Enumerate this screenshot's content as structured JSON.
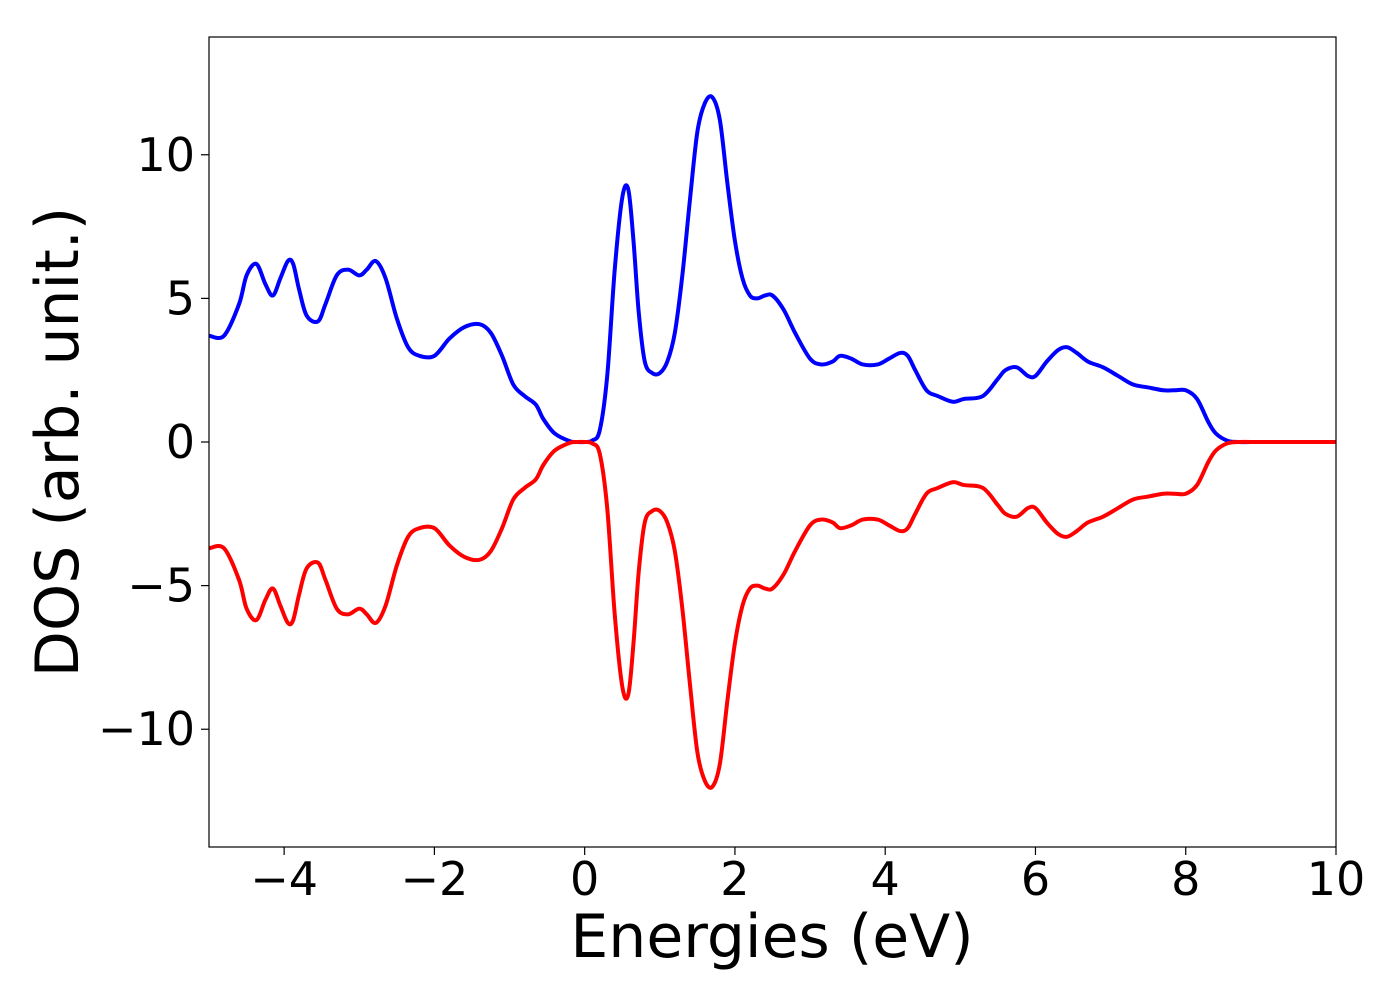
{
  "chart_data": {
    "type": "line",
    "title": "",
    "xlabel": "Energies (eV)",
    "ylabel": "DOS (arb. unit.)",
    "xlim": [
      -5,
      10
    ],
    "ylim": [
      -14.1,
      14.1
    ],
    "xticks": [
      -4,
      -2,
      0,
      2,
      4,
      6,
      8,
      10
    ],
    "xtick_labels": [
      "−4",
      "−2",
      "0",
      "2",
      "4",
      "6",
      "8",
      "10"
    ],
    "yticks": [
      10,
      5,
      0,
      -5,
      -10
    ],
    "ytick_labels": [
      "10",
      "5",
      "0",
      "−5",
      "−10"
    ],
    "grid": false,
    "legend": "none",
    "series": [
      {
        "color": "#0000ff",
        "x": [
          -5.0,
          -4.8,
          -4.6,
          -4.5,
          -4.37,
          -4.25,
          -4.15,
          -4.05,
          -3.95,
          -3.88,
          -3.8,
          -3.7,
          -3.55,
          -3.45,
          -3.3,
          -3.15,
          -3.0,
          -2.9,
          -2.78,
          -2.65,
          -2.5,
          -2.35,
          -2.2,
          -2.0,
          -1.8,
          -1.6,
          -1.4,
          -1.25,
          -1.1,
          -0.95,
          -0.8,
          -0.65,
          -0.55,
          -0.4,
          -0.2,
          -0.1,
          0.0,
          0.1,
          0.2,
          0.3,
          0.4,
          0.5,
          0.58,
          0.65,
          0.72,
          0.8,
          0.9,
          1.0,
          1.1,
          1.2,
          1.3,
          1.4,
          1.5,
          1.6,
          1.7,
          1.8,
          1.9,
          2.0,
          2.1,
          2.2,
          2.3,
          2.4,
          2.5,
          2.65,
          2.8,
          3.0,
          3.15,
          3.3,
          3.4,
          3.55,
          3.7,
          3.9,
          4.05,
          4.2,
          4.3,
          4.4,
          4.55,
          4.7,
          4.9,
          5.05,
          5.3,
          5.5,
          5.6,
          5.75,
          5.9,
          6.0,
          6.15,
          6.3,
          6.42,
          6.55,
          6.7,
          6.9,
          7.1,
          7.3,
          7.5,
          7.7,
          7.85,
          8.0,
          8.15,
          8.3,
          8.4,
          8.55,
          8.7,
          9.0,
          9.5,
          10.0
        ],
        "y": [
          3.7,
          3.7,
          4.8,
          5.8,
          6.2,
          5.5,
          5.1,
          5.7,
          6.3,
          6.2,
          5.3,
          4.4,
          4.2,
          4.8,
          5.8,
          6.0,
          5.8,
          6.0,
          6.3,
          5.7,
          4.3,
          3.3,
          3.0,
          3.0,
          3.6,
          4.0,
          4.1,
          3.8,
          3.0,
          2.0,
          1.6,
          1.3,
          0.8,
          0.3,
          0.03,
          0.0,
          0.0,
          0.05,
          0.4,
          2.3,
          6.0,
          8.5,
          8.8,
          7.0,
          4.5,
          2.8,
          2.4,
          2.4,
          2.8,
          3.8,
          5.8,
          8.4,
          10.8,
          11.8,
          12.0,
          11.2,
          9.0,
          7.0,
          5.7,
          5.1,
          5.0,
          5.1,
          5.1,
          4.6,
          3.8,
          2.9,
          2.7,
          2.8,
          3.0,
          2.9,
          2.7,
          2.7,
          2.9,
          3.1,
          3.0,
          2.5,
          1.8,
          1.6,
          1.4,
          1.5,
          1.6,
          2.2,
          2.5,
          2.6,
          2.3,
          2.3,
          2.8,
          3.2,
          3.3,
          3.1,
          2.8,
          2.6,
          2.3,
          2.0,
          1.9,
          1.8,
          1.8,
          1.8,
          1.5,
          0.7,
          0.3,
          0.05,
          0.0,
          0.0,
          0.0,
          0.0
        ]
      },
      {
        "color": "#ff0000",
        "x": [
          -5.0,
          -4.8,
          -4.6,
          -4.5,
          -4.37,
          -4.25,
          -4.15,
          -4.05,
          -3.95,
          -3.88,
          -3.8,
          -3.7,
          -3.55,
          -3.45,
          -3.3,
          -3.15,
          -3.0,
          -2.9,
          -2.78,
          -2.65,
          -2.5,
          -2.35,
          -2.2,
          -2.0,
          -1.8,
          -1.6,
          -1.4,
          -1.25,
          -1.1,
          -0.95,
          -0.8,
          -0.65,
          -0.55,
          -0.4,
          -0.2,
          -0.1,
          0.0,
          0.1,
          0.2,
          0.3,
          0.4,
          0.5,
          0.58,
          0.65,
          0.72,
          0.8,
          0.9,
          1.0,
          1.1,
          1.2,
          1.3,
          1.4,
          1.5,
          1.6,
          1.7,
          1.8,
          1.9,
          2.0,
          2.1,
          2.2,
          2.3,
          2.4,
          2.5,
          2.65,
          2.8,
          3.0,
          3.15,
          3.3,
          3.4,
          3.55,
          3.7,
          3.9,
          4.05,
          4.2,
          4.3,
          4.4,
          4.55,
          4.7,
          4.9,
          5.05,
          5.3,
          5.5,
          5.6,
          5.75,
          5.9,
          6.0,
          6.15,
          6.3,
          6.42,
          6.55,
          6.7,
          6.9,
          7.1,
          7.3,
          7.5,
          7.7,
          7.85,
          8.0,
          8.15,
          8.3,
          8.4,
          8.55,
          8.7,
          9.0,
          9.5,
          10.0
        ],
        "y": [
          -3.7,
          -3.7,
          -4.8,
          -5.8,
          -6.2,
          -5.5,
          -5.1,
          -5.7,
          -6.3,
          -6.2,
          -5.3,
          -4.4,
          -4.2,
          -4.8,
          -5.8,
          -6.0,
          -5.8,
          -6.0,
          -6.3,
          -5.7,
          -4.3,
          -3.3,
          -3.0,
          -3.0,
          -3.6,
          -4.0,
          -4.1,
          -3.8,
          -3.0,
          -2.0,
          -1.6,
          -1.3,
          -0.8,
          -0.3,
          -0.03,
          0.0,
          0.0,
          -0.05,
          -0.4,
          -2.3,
          -6.0,
          -8.5,
          -8.8,
          -7.0,
          -4.5,
          -2.8,
          -2.4,
          -2.4,
          -2.8,
          -3.8,
          -5.8,
          -8.4,
          -10.8,
          -11.8,
          -12.0,
          -11.2,
          -9.0,
          -7.0,
          -5.7,
          -5.1,
          -5.0,
          -5.1,
          -5.1,
          -4.6,
          -3.8,
          -2.9,
          -2.7,
          -2.8,
          -3.0,
          -2.9,
          -2.7,
          -2.7,
          -2.9,
          -3.1,
          -3.0,
          -2.5,
          -1.8,
          -1.6,
          -1.4,
          -1.5,
          -1.6,
          -2.2,
          -2.5,
          -2.6,
          -2.3,
          -2.3,
          -2.8,
          -3.2,
          -3.3,
          -3.1,
          -2.8,
          -2.6,
          -2.3,
          -2.0,
          -1.9,
          -1.8,
          -1.8,
          -1.8,
          -1.5,
          -0.7,
          -0.3,
          -0.05,
          0.0,
          0.0,
          0.0,
          0.0
        ]
      }
    ]
  }
}
